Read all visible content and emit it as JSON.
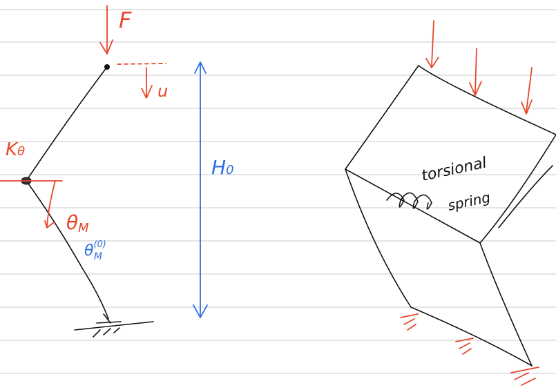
{
  "left_figure": {
    "force": "F",
    "displacement": "u",
    "stiffness": {
      "symbol": "K",
      "subscript": "θ"
    },
    "height": {
      "symbol": "H",
      "subscript": "0"
    },
    "angle": {
      "symbol": "θ",
      "subscript": "M"
    },
    "initial_angle": {
      "symbol": "θ",
      "subscript": "M",
      "superscript": "(0)"
    }
  },
  "right_figure": {
    "spring_label": [
      "torsional",
      "spring"
    ]
  }
}
